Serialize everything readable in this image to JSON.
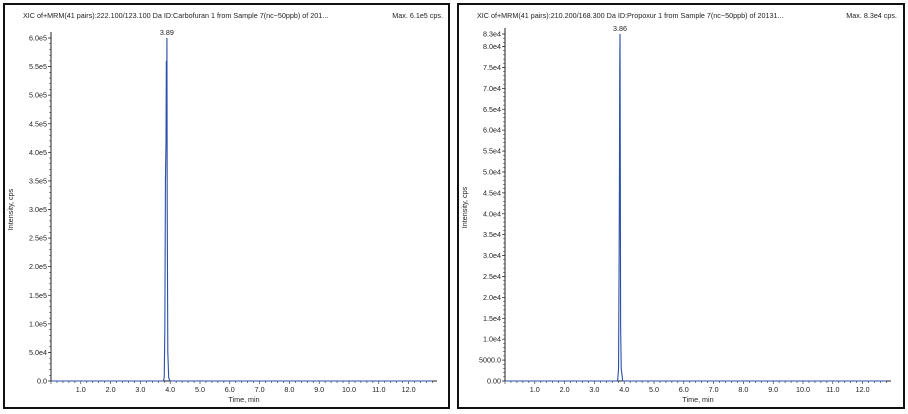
{
  "chart_data": [
    {
      "type": "line",
      "title": "XIC of+MRM(41 pairs):222.100/123.100 Da ID:Carbofuran 1 from Sample 7(nc~50ppb) of 201...",
      "max_label": "Max. 6.1e5 cps.",
      "xlabel": "Time, min",
      "ylabel": "Intensity, cps",
      "xlim": [
        0,
        12.8
      ],
      "ylim": [
        0,
        600000
      ],
      "x_ticks": [
        "1.0",
        "2.0",
        "3.0",
        "4.0",
        "5.0",
        "6.0",
        "7.0",
        "8.0",
        "9.0",
        "10.0",
        "11.0",
        "12.0"
      ],
      "y_ticks": [
        {
          "value": 0,
          "label": "0.0"
        },
        {
          "value": 50000,
          "label": "5.0e4"
        },
        {
          "value": 100000,
          "label": "1.0e5"
        },
        {
          "value": 150000,
          "label": "1.5e5"
        },
        {
          "value": 200000,
          "label": "2.0e5"
        },
        {
          "value": 250000,
          "label": "2.5e5"
        },
        {
          "value": 300000,
          "label": "3.0e5"
        },
        {
          "value": 350000,
          "label": "3.5e5"
        },
        {
          "value": 400000,
          "label": "4.0e5"
        },
        {
          "value": 450000,
          "label": "4.5e5"
        },
        {
          "value": 500000,
          "label": "5.0e5"
        },
        {
          "value": 550000,
          "label": "5.5e5"
        },
        {
          "value": 600000,
          "label": "6.0e5"
        }
      ],
      "peak_label": {
        "x": 3.89,
        "y": 600000,
        "text": "3.89"
      },
      "color": "#2a4fa8",
      "series": [
        {
          "x": [
            0,
            3.7,
            3.78,
            3.8,
            3.82,
            3.84,
            3.86,
            3.87,
            3.88,
            3.89,
            3.9,
            3.92,
            3.95,
            4.0,
            12.8
          ],
          "y": [
            0,
            0,
            0,
            8000,
            90000,
            350000,
            420000,
            560000,
            420000,
            600000,
            300000,
            50000,
            5000,
            0,
            0
          ]
        }
      ]
    },
    {
      "type": "line",
      "title": "XIC of+MRM(41 pairs):210.200/168.300 Da ID:Propoxur 1 from Sample 7(nc~50ppb) of 20131...",
      "max_label": "Max. 8.3e4 cps.",
      "xlabel": "Time, min",
      "ylabel": "Intensity, cps",
      "xlim": [
        0,
        12.8
      ],
      "ylim": [
        0,
        83000
      ],
      "x_ticks": [
        "1.0",
        "2.0",
        "3.0",
        "4.0",
        "5.0",
        "6.0",
        "7.0",
        "8.0",
        "9.0",
        "10.0",
        "11.0",
        "12.0"
      ],
      "y_ticks": [
        {
          "value": 0,
          "label": "0.00"
        },
        {
          "value": 5000,
          "label": "5000.0"
        },
        {
          "value": 10000,
          "label": "1.0e4"
        },
        {
          "value": 15000,
          "label": "1.5e4"
        },
        {
          "value": 20000,
          "label": "2.0e4"
        },
        {
          "value": 25000,
          "label": "2.5e4"
        },
        {
          "value": 30000,
          "label": "3.0e4"
        },
        {
          "value": 35000,
          "label": "3.5e4"
        },
        {
          "value": 40000,
          "label": "4.0e4"
        },
        {
          "value": 45000,
          "label": "4.5e4"
        },
        {
          "value": 50000,
          "label": "5.0e4"
        },
        {
          "value": 55000,
          "label": "5.5e4"
        },
        {
          "value": 60000,
          "label": "6.0e4"
        },
        {
          "value": 65000,
          "label": "6.5e4"
        },
        {
          "value": 70000,
          "label": "7.0e4"
        },
        {
          "value": 75000,
          "label": "7.5e4"
        },
        {
          "value": 80000,
          "label": "8.0e4"
        },
        {
          "value": 83000,
          "label": "8.3e4"
        }
      ],
      "peak_label": {
        "x": 3.86,
        "y": 83000,
        "text": "3.86"
      },
      "color": "#2a4fa8",
      "series": [
        {
          "x": [
            0,
            3.78,
            3.81,
            3.83,
            3.84,
            3.85,
            3.86,
            3.87,
            3.88,
            3.9,
            3.95,
            12.8
          ],
          "y": [
            0,
            0,
            3000,
            30000,
            48000,
            75000,
            83000,
            48000,
            13000,
            3000,
            0,
            0
          ]
        }
      ]
    }
  ]
}
